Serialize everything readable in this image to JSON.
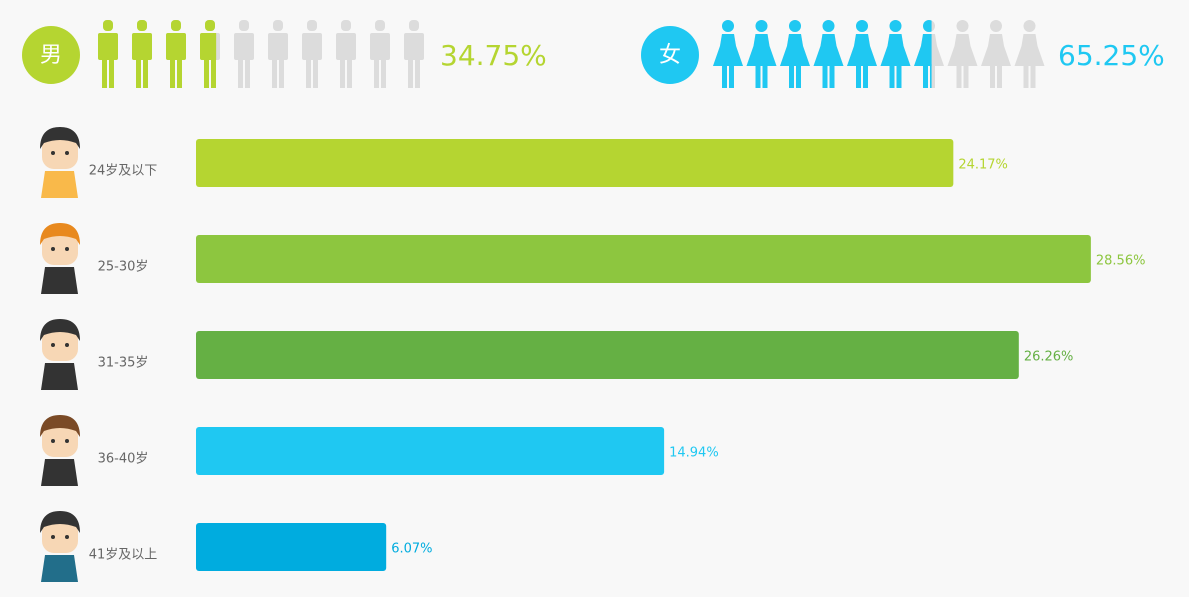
{
  "chart_data": [
    {
      "type": "pictogram",
      "categories": [
        "男",
        "女"
      ],
      "values": [
        34.75,
        65.25
      ],
      "value_labels": [
        "34.75%",
        "65.25%"
      ],
      "colors": [
        "#b5d531",
        "#1fc8f2"
      ],
      "xlim": [
        0,
        100
      ]
    },
    {
      "type": "bar",
      "categories": [
        "24岁及以下",
        "25-30岁",
        "31-35岁",
        "36-40岁",
        "41岁及以上"
      ],
      "values": [
        24.17,
        28.56,
        26.26,
        14.94,
        6.07
      ],
      "value_labels": [
        "24.17%",
        "28.56%",
        "26.26%",
        "14.94%",
        "6.07%"
      ],
      "colors": [
        "#b5d531",
        "#8dc63f",
        "#65b044",
        "#1fc8f2",
        "#00acdf"
      ],
      "xlim": [
        0,
        31.5
      ]
    }
  ]
}
